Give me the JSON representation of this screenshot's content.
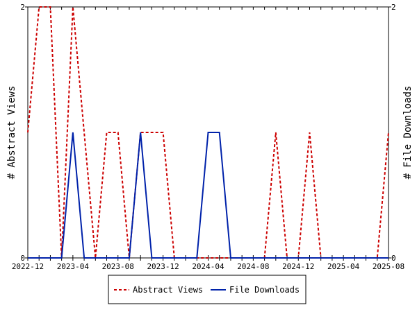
{
  "chart_data": {
    "type": "line",
    "ylabel_left": "# Abstract Views",
    "ylabel_right": "# File Downloads",
    "ylim_left": [
      0,
      2
    ],
    "ylim_right": [
      0,
      2
    ],
    "y_ticks_left": [
      "0",
      "2"
    ],
    "y_ticks_right": [
      "0",
      "2"
    ],
    "x_tick_labels": [
      "2022-12",
      "2023-04",
      "2023-08",
      "2023-12",
      "2024-04",
      "2024-08",
      "2024-12",
      "2025-04",
      "2025-08"
    ],
    "x": [
      "2022-12",
      "2023-01",
      "2023-02",
      "2023-03",
      "2023-04",
      "2023-05",
      "2023-06",
      "2023-07",
      "2023-08",
      "2023-09",
      "2023-10",
      "2023-11",
      "2023-12",
      "2024-01",
      "2024-02",
      "2024-03",
      "2024-04",
      "2024-05",
      "2024-06",
      "2024-07",
      "2024-08",
      "2024-09",
      "2024-10",
      "2024-11",
      "2024-12",
      "2025-01",
      "2025-02",
      "2025-03",
      "2025-04",
      "2025-05",
      "2025-06",
      "2025-07",
      "2025-08"
    ],
    "series": [
      {
        "name": "Abstract Views",
        "color": "#cc0000",
        "style": "dashed",
        "axis": "left",
        "values": [
          1,
          2,
          2,
          0,
          2,
          1,
          0,
          1,
          1,
          0,
          1,
          1,
          1,
          0,
          0,
          0,
          0,
          0,
          0,
          0,
          0,
          0,
          1,
          0,
          0,
          1,
          0,
          0,
          0,
          0,
          0,
          0,
          1
        ]
      },
      {
        "name": "File Downloads",
        "color": "#0022aa",
        "style": "solid",
        "axis": "right",
        "values": [
          0,
          0,
          0,
          0,
          1,
          0,
          0,
          0,
          0,
          0,
          1,
          0,
          0,
          0,
          0,
          0,
          1,
          1,
          0,
          0,
          0,
          0,
          0,
          0,
          0,
          0,
          0,
          0,
          0,
          0,
          0,
          0,
          0
        ]
      }
    ],
    "grid": false,
    "legend_position": "bottom"
  }
}
